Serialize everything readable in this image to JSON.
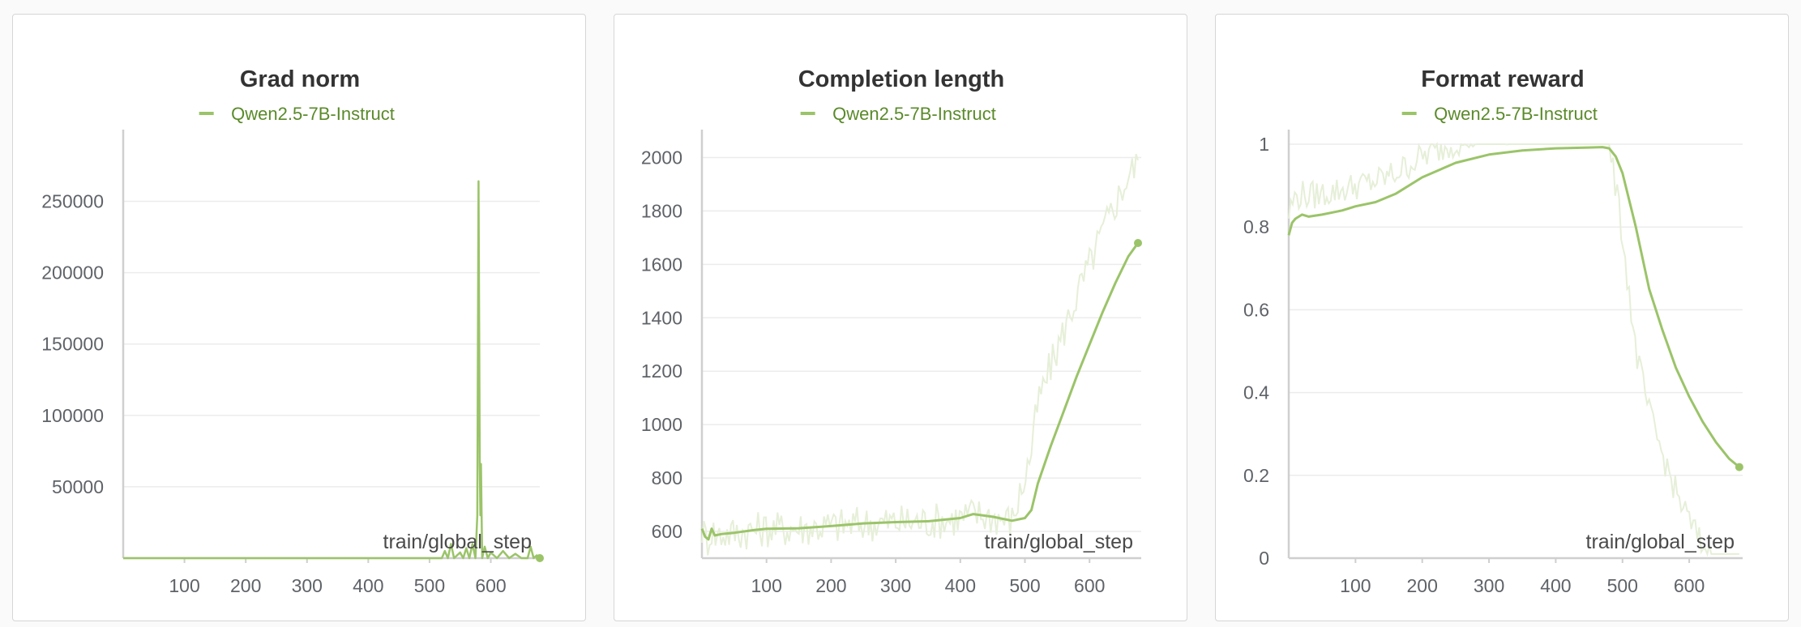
{
  "colors": {
    "series": "#9bc469",
    "legend_text": "#5a8a2a",
    "raw": "#e6efd8"
  },
  "chart_data": [
    {
      "type": "line",
      "title": "Grad norm",
      "legend": [
        "Qwen2.5-7B-Instruct"
      ],
      "xlabel": "train/global_step",
      "xlim": [
        0,
        680
      ],
      "ylim": [
        0,
        290000
      ],
      "xticks": [
        100,
        200,
        300,
        400,
        500,
        600
      ],
      "yticks": [
        50000,
        100000,
        150000,
        200000,
        250000
      ],
      "ytick_labels": [
        "50000",
        "100000",
        "150000",
        "200000",
        "250000"
      ],
      "grid": true,
      "series": [
        {
          "name": "Qwen2.5-7B-Instruct",
          "x": [
            0,
            100,
            200,
            300,
            400,
            500,
            520,
            525,
            530,
            535,
            540,
            550,
            555,
            560,
            565,
            570,
            575,
            578,
            579,
            580,
            581,
            582,
            583,
            584,
            585,
            586,
            590,
            595,
            600,
            610,
            620,
            630,
            640,
            650,
            660,
            665,
            670,
            675,
            680
          ],
          "y": [
            0,
            0,
            0,
            0,
            0,
            0,
            0,
            5000,
            0,
            10000,
            0,
            4000,
            0,
            7000,
            0,
            10000,
            0,
            30000,
            160000,
            264000,
            160000,
            66000,
            30000,
            66000,
            30000,
            0,
            8000,
            0,
            4000,
            0,
            5000,
            0,
            3000,
            0,
            0,
            8000,
            0,
            2000,
            0
          ]
        }
      ]
    },
    {
      "type": "line",
      "title": "Completion length",
      "legend": [
        "Qwen2.5-7B-Instruct"
      ],
      "xlabel": "train/global_step",
      "xlim": [
        0,
        680
      ],
      "ylim": [
        500,
        2050
      ],
      "xticks": [
        100,
        200,
        300,
        400,
        500,
        600
      ],
      "yticks": [
        600,
        800,
        1000,
        1200,
        1400,
        1600,
        1800,
        2000
      ],
      "ytick_labels": [
        "600",
        "800",
        "1000",
        "1200",
        "1400",
        "1600",
        "1800",
        "2000"
      ],
      "grid": true,
      "series": [
        {
          "name": "Qwen2.5-7B-Instruct",
          "x": [
            0,
            5,
            10,
            15,
            20,
            30,
            50,
            80,
            100,
            150,
            200,
            250,
            300,
            350,
            400,
            420,
            450,
            480,
            500,
            510,
            520,
            540,
            560,
            580,
            600,
            620,
            640,
            660,
            675
          ],
          "y": [
            610,
            580,
            570,
            610,
            585,
            590,
            595,
            605,
            610,
            612,
            620,
            630,
            635,
            638,
            650,
            665,
            655,
            640,
            650,
            680,
            780,
            920,
            1050,
            1180,
            1300,
            1420,
            1530,
            1630,
            1680
          ]
        }
      ]
    },
    {
      "type": "line",
      "title": "Format reward",
      "legend": [
        "Qwen2.5-7B-Instruct"
      ],
      "xlabel": "train/global_step",
      "xlim": [
        0,
        680
      ],
      "ylim": [
        0,
        1
      ],
      "xticks": [
        100,
        200,
        300,
        400,
        500,
        600
      ],
      "yticks": [
        0,
        0.2,
        0.4,
        0.6,
        0.8,
        1
      ],
      "ytick_labels": [
        "0",
        "0.2",
        "0.4",
        "0.6",
        "0.8",
        "1"
      ],
      "grid": true,
      "series": [
        {
          "name": "Qwen2.5-7B-Instruct",
          "x": [
            0,
            5,
            10,
            20,
            30,
            50,
            80,
            100,
            130,
            160,
            200,
            250,
            300,
            350,
            400,
            450,
            470,
            480,
            490,
            500,
            520,
            540,
            560,
            580,
            600,
            620,
            640,
            660,
            675
          ],
          "y": [
            0.78,
            0.81,
            0.82,
            0.83,
            0.825,
            0.83,
            0.84,
            0.85,
            0.86,
            0.88,
            0.92,
            0.955,
            0.975,
            0.985,
            0.99,
            0.992,
            0.993,
            0.99,
            0.97,
            0.93,
            0.8,
            0.65,
            0.55,
            0.46,
            0.39,
            0.33,
            0.28,
            0.24,
            0.22
          ]
        }
      ]
    }
  ]
}
